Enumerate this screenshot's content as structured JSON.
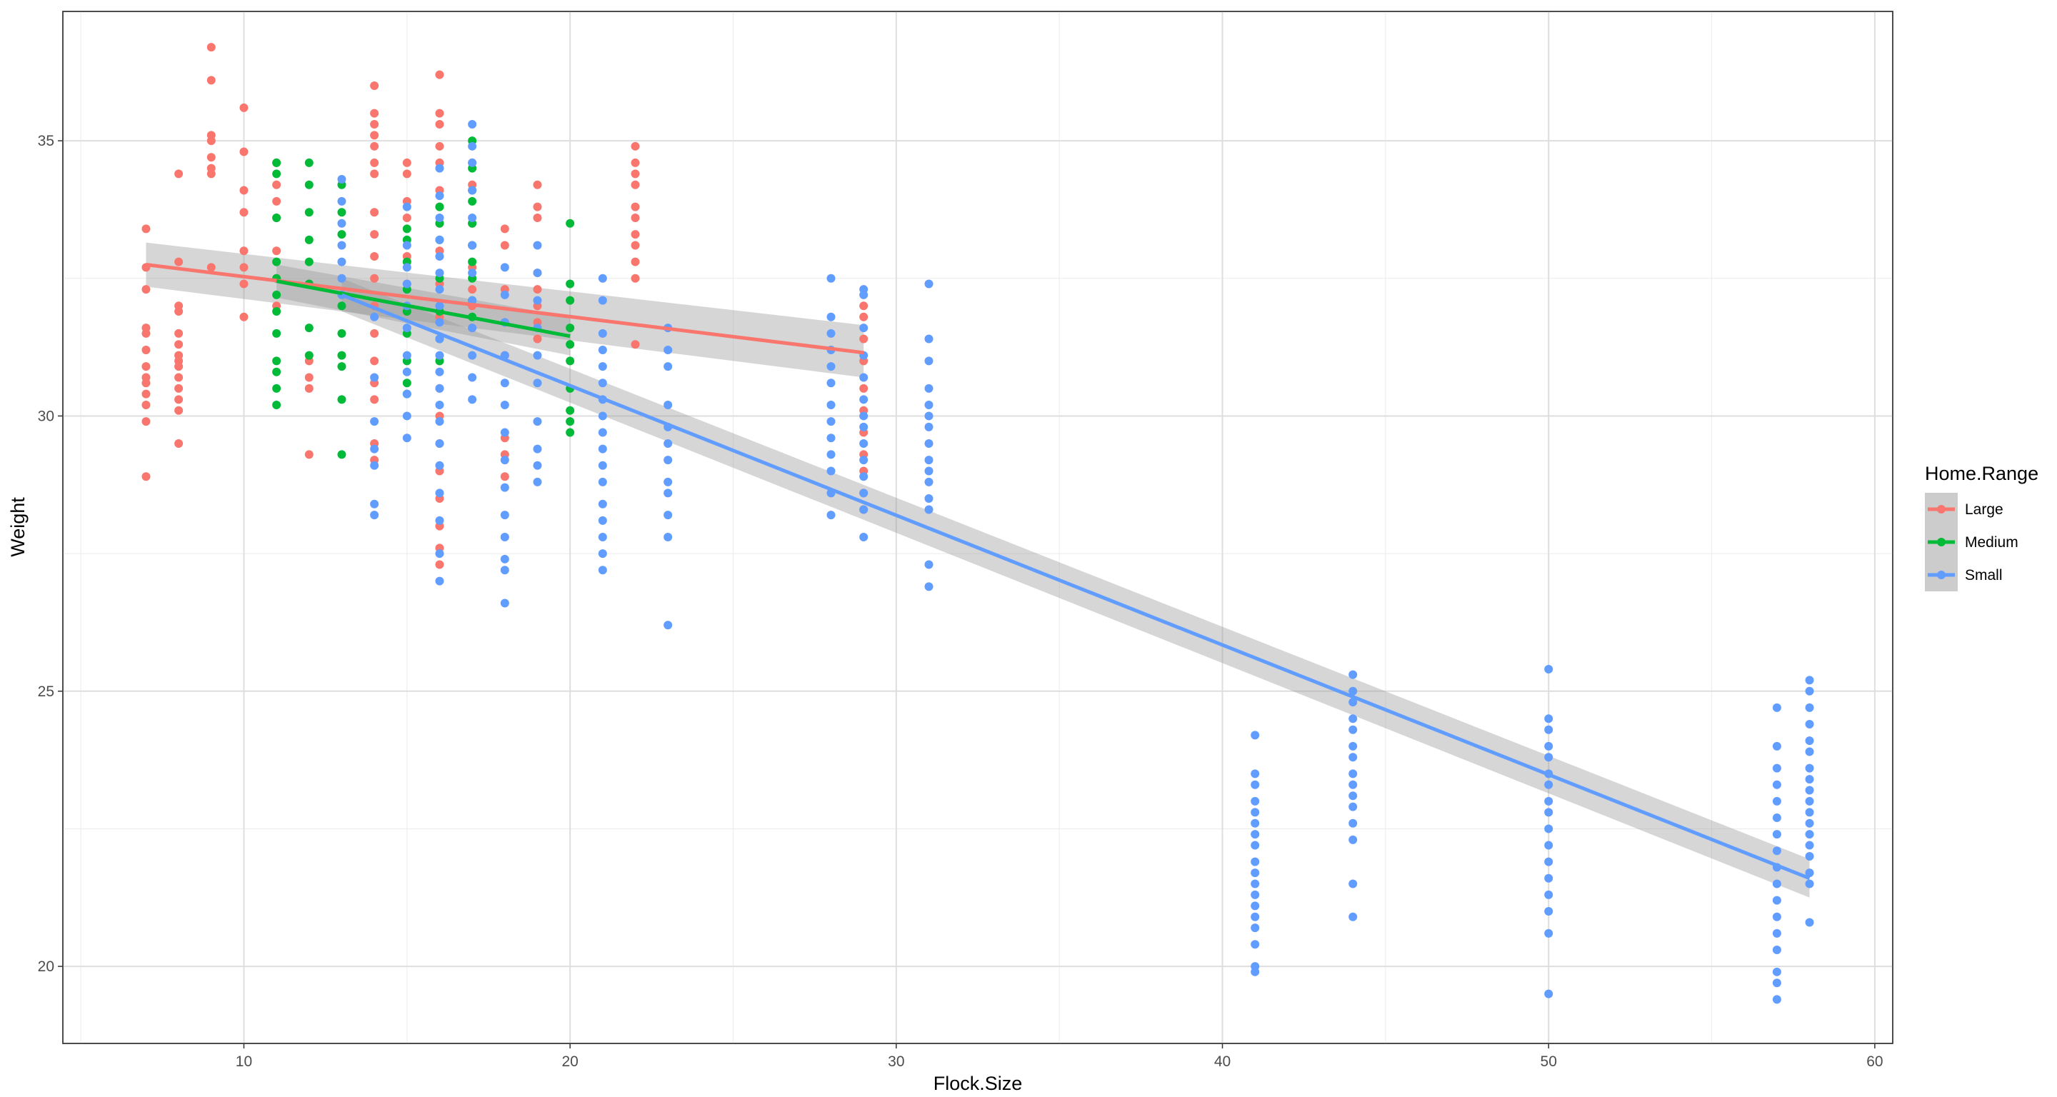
{
  "chart_data": {
    "type": "scatter",
    "xlabel": "Flock.Size",
    "ylabel": "Weight",
    "xlim": [
      4.45,
      60.55
    ],
    "ylim": [
      18.6,
      37.35
    ],
    "x_ticks": [
      10,
      20,
      30,
      40,
      50,
      60
    ],
    "y_ticks": [
      20,
      25,
      30,
      35
    ],
    "x_tick_labels": [
      "10",
      "20",
      "30",
      "40",
      "50",
      "60"
    ],
    "y_tick_labels": [
      "20",
      "25",
      "30",
      "35"
    ],
    "grid": true,
    "legend": {
      "title": "Home.Range",
      "position": "right"
    },
    "series": [
      {
        "name": "Large",
        "color": "#F8766D",
        "trend": {
          "x": [
            7,
            29
          ],
          "y": [
            32.75,
            31.15
          ],
          "se_lower": [
            32.35,
            30.7
          ],
          "se_upper": [
            33.15,
            31.65
          ]
        },
        "groups": [
          {
            "x": 7,
            "y": [
              33.4,
              32.7,
              32.3,
              31.6,
              31.5,
              31.2,
              30.9,
              30.7,
              30.6,
              30.4,
              30.2,
              29.9,
              28.9
            ]
          },
          {
            "x": 8,
            "y": [
              34.4,
              32.8,
              32.0,
              31.9,
              31.5,
              31.3,
              31.1,
              31.0,
              30.9,
              30.7,
              30.5,
              30.3,
              30.1,
              29.5
            ]
          },
          {
            "x": 9,
            "y": [
              36.7,
              36.1,
              35.1,
              35.0,
              34.7,
              34.5,
              34.4,
              32.7
            ]
          },
          {
            "x": 10,
            "y": [
              35.6,
              34.8,
              34.1,
              33.7,
              33.0,
              32.7,
              32.4,
              31.8
            ]
          },
          {
            "x": 11,
            "y": [
              34.6,
              34.2,
              33.9,
              33.6,
              33.0,
              32.5,
              32.0
            ]
          },
          {
            "x": 12,
            "y": [
              32.4,
              31.0,
              30.7,
              30.5,
              29.3
            ]
          },
          {
            "x": 14,
            "y": [
              36.0,
              35.5,
              35.3,
              35.1,
              34.9,
              34.6,
              34.4,
              33.7,
              33.3,
              32.9,
              32.5,
              32.0,
              31.5,
              31.0,
              30.6,
              30.3,
              29.5,
              29.2
            ]
          },
          {
            "x": 15,
            "y": [
              34.6,
              34.4,
              33.9,
              33.6,
              32.9,
              32.4,
              31.9
            ]
          },
          {
            "x": 16,
            "y": [
              36.2,
              35.5,
              35.3,
              34.9,
              34.6,
              34.1,
              33.8,
              33.5,
              33.0,
              32.4,
              31.8,
              31.0,
              30.5,
              30.0,
              29.5,
              29.0,
              28.5,
              28.0,
              27.6,
              27.3
            ]
          },
          {
            "x": 17,
            "y": [
              34.6,
              34.2,
              33.5,
              33.1,
              32.7,
              32.3,
              32.0,
              31.6
            ]
          },
          {
            "x": 18,
            "y": [
              33.4,
              33.1,
              32.3,
              31.7,
              31.1,
              29.6,
              29.3,
              28.9
            ]
          },
          {
            "x": 19,
            "y": [
              34.2,
              33.8,
              33.6,
              32.6,
              32.3,
              32.0,
              31.7,
              31.4
            ]
          },
          {
            "x": 22,
            "y": [
              34.9,
              34.6,
              34.4,
              34.2,
              33.8,
              33.6,
              33.3,
              33.1,
              32.8,
              32.5,
              31.3
            ]
          },
          {
            "x": 29,
            "y": [
              32.0,
              31.8,
              31.4,
              31.0,
              30.5,
              30.1,
              29.7,
              29.3,
              29.0,
              28.6,
              28.3
            ]
          }
        ]
      },
      {
        "name": "Medium",
        "color": "#00BA38",
        "trend": {
          "x": [
            11,
            20
          ],
          "y": [
            32.45,
            31.45
          ],
          "se_lower": [
            32.15,
            31.1
          ],
          "se_upper": [
            32.75,
            31.8
          ]
        },
        "groups": [
          {
            "x": 11,
            "y": [
              34.6,
              34.4,
              33.6,
              32.8,
              32.5,
              32.2,
              31.9,
              31.5,
              31.0,
              30.8,
              30.5,
              30.2
            ]
          },
          {
            "x": 12,
            "y": [
              34.6,
              34.2,
              33.7,
              33.2,
              32.8,
              32.4,
              31.6,
              31.1
            ]
          },
          {
            "x": 13,
            "y": [
              34.2,
              33.7,
              33.3,
              32.0,
              31.5,
              31.1,
              30.9,
              30.3,
              29.3
            ]
          },
          {
            "x": 15,
            "y": [
              33.4,
              33.2,
              32.8,
              32.3,
              31.9,
              31.5,
              31.0,
              30.6,
              30.4
            ]
          },
          {
            "x": 16,
            "y": [
              33.8,
              33.5,
              33.2,
              32.5,
              31.9,
              31.4,
              31.0
            ]
          },
          {
            "x": 17,
            "y": [
              35.0,
              34.5,
              34.1,
              33.9,
              33.5,
              33.1,
              32.8,
              32.5,
              32.1,
              31.8
            ]
          },
          {
            "x": 20,
            "y": [
              33.5,
              32.4,
              32.1,
              31.6,
              31.3,
              31.0,
              30.5,
              30.1,
              29.9,
              29.7
            ]
          }
        ]
      },
      {
        "name": "Small",
        "color": "#619CFF",
        "trend": {
          "x": [
            13,
            58
          ],
          "y": [
            32.2,
            21.6
          ],
          "se_lower": [
            31.9,
            21.25
          ],
          "se_upper": [
            32.5,
            21.95
          ]
        },
        "groups": [
          {
            "x": 13,
            "y": [
              34.3,
              33.9,
              33.5,
              33.1,
              32.8,
              32.5,
              32.2
            ]
          },
          {
            "x": 14,
            "y": [
              31.8,
              30.7,
              29.9,
              29.4,
              29.1,
              28.4,
              28.2
            ]
          },
          {
            "x": 15,
            "y": [
              33.8,
              33.1,
              32.7,
              32.4,
              32.0,
              31.6,
              31.1,
              30.8,
              30.4,
              30.0,
              29.6
            ]
          },
          {
            "x": 16,
            "y": [
              34.5,
              34.0,
              33.6,
              33.2,
              32.9,
              32.6,
              32.3,
              32.0,
              31.7,
              31.4,
              31.1,
              30.8,
              30.5,
              30.2,
              29.9,
              29.5,
              29.1,
              28.6,
              28.1,
              27.5,
              27.0
            ]
          },
          {
            "x": 17,
            "y": [
              35.3,
              34.9,
              34.6,
              34.1,
              33.6,
              33.1,
              32.6,
              32.1,
              31.6,
              31.1,
              30.7,
              30.3
            ]
          },
          {
            "x": 18,
            "y": [
              32.7,
              32.2,
              31.7,
              31.1,
              30.6,
              30.2,
              29.7,
              29.2,
              28.7,
              28.2,
              27.8,
              27.4,
              27.2,
              26.6
            ]
          },
          {
            "x": 19,
            "y": [
              33.1,
              32.6,
              32.1,
              31.6,
              31.1,
              30.6,
              29.9,
              29.4,
              29.1,
              28.8
            ]
          },
          {
            "x": 21,
            "y": [
              32.5,
              32.1,
              31.5,
              31.2,
              30.9,
              30.6,
              30.3,
              30.0,
              29.7,
              29.4,
              29.1,
              28.8,
              28.4,
              28.1,
              27.8,
              27.5,
              27.2
            ]
          },
          {
            "x": 23,
            "y": [
              31.6,
              31.2,
              30.9,
              30.2,
              29.8,
              29.5,
              29.2,
              28.8,
              28.6,
              28.2,
              27.8,
              26.2
            ]
          },
          {
            "x": 28,
            "y": [
              32.5,
              31.8,
              31.5,
              31.2,
              30.9,
              30.6,
              30.2,
              29.9,
              29.6,
              29.3,
              29.0,
              28.6,
              28.2
            ]
          },
          {
            "x": 29,
            "y": [
              32.3,
              32.2,
              31.6,
              31.1,
              30.7,
              30.3,
              30.0,
              29.8,
              29.5,
              29.2,
              28.9,
              28.6,
              28.3,
              27.8
            ]
          },
          {
            "x": 31,
            "y": [
              32.4,
              31.4,
              31.0,
              30.5,
              30.2,
              30.0,
              29.8,
              29.5,
              29.2,
              29.0,
              28.8,
              28.5,
              28.3,
              27.3,
              26.9
            ]
          },
          {
            "x": 41,
            "y": [
              24.2,
              23.5,
              23.3,
              23.0,
              22.8,
              22.6,
              22.4,
              22.2,
              21.9,
              21.7,
              21.5,
              21.3,
              21.1,
              20.9,
              20.7,
              20.4,
              20.0,
              19.9
            ]
          },
          {
            "x": 44,
            "y": [
              25.3,
              25.0,
              24.8,
              24.5,
              24.3,
              24.0,
              23.8,
              23.5,
              23.3,
              23.1,
              22.9,
              22.6,
              22.3,
              21.5,
              20.9
            ]
          },
          {
            "x": 50,
            "y": [
              25.4,
              24.5,
              24.3,
              24.0,
              23.8,
              23.5,
              23.3,
              23.0,
              22.8,
              22.5,
              22.2,
              21.9,
              21.6,
              21.3,
              21.0,
              20.6,
              19.5
            ]
          },
          {
            "x": 57,
            "y": [
              24.7,
              24.0,
              23.6,
              23.3,
              23.0,
              22.7,
              22.4,
              22.1,
              21.8,
              21.5,
              21.2,
              20.9,
              20.6,
              20.3,
              19.9,
              19.7,
              19.4
            ]
          },
          {
            "x": 58,
            "y": [
              25.2,
              25.0,
              24.7,
              24.4,
              24.1,
              23.9,
              23.6,
              23.4,
              23.2,
              23.0,
              22.8,
              22.6,
              22.4,
              22.2,
              22.0,
              21.7,
              21.5,
              20.8
            ]
          }
        ]
      }
    ]
  }
}
